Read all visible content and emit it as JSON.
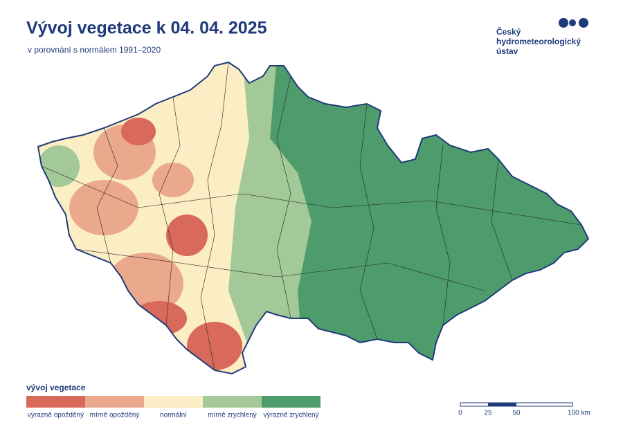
{
  "header": {
    "title": "Vývoj vegetace k 04. 04. 2025",
    "subtitle": "v porovnání s normálem 1991–2020"
  },
  "logo": {
    "lines": [
      "Český",
      "hydrometeorologický",
      "ústav"
    ]
  },
  "legend": {
    "title": "vývoj vegetace",
    "items": [
      {
        "label": "výrazně opožděný",
        "color": "#d9695a"
      },
      {
        "label": "mírně opožděný",
        "color": "#eaa98c"
      },
      {
        "label": "normální",
        "color": "#fbedc4"
      },
      {
        "label": "mírně zrychlený",
        "color": "#a3c998"
      },
      {
        "label": "výrazně zrychlený",
        "color": "#4e9c6c"
      }
    ]
  },
  "scale": {
    "labels": [
      "0",
      "25",
      "50",
      "100 km"
    ]
  }
}
